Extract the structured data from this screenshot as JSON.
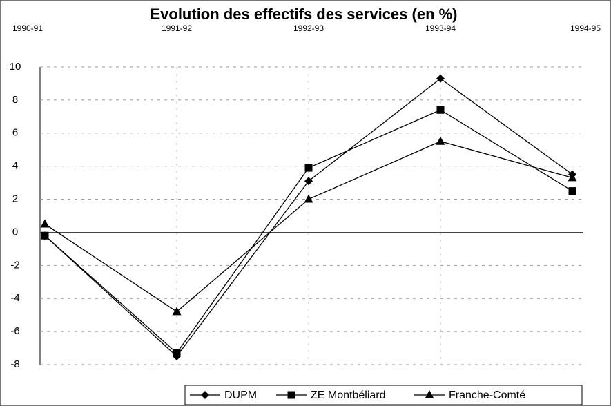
{
  "chart_data": {
    "type": "line",
    "title": "Evolution des effectifs des services (en %)",
    "categories": [
      "1990-91",
      "1991-92",
      "1992-93",
      "1993-94",
      "1994-95"
    ],
    "series": [
      {
        "name": "DUPM",
        "color": "#000000",
        "marker": "diamond",
        "values": [
          -0.2,
          -7.5,
          3.1,
          9.3,
          3.5
        ]
      },
      {
        "name": "ZE Montbéliard",
        "color": "#000000",
        "marker": "square",
        "values": [
          -0.2,
          -7.3,
          3.9,
          7.4,
          2.5
        ]
      },
      {
        "name": "Franche-Comté",
        "color": "#000000",
        "marker": "triangle",
        "values": [
          0.5,
          -4.8,
          2.0,
          5.5,
          3.3
        ]
      }
    ],
    "ylim": [
      -8,
      10
    ],
    "yticks": [
      -8,
      -6,
      -4,
      -2,
      0,
      2,
      4,
      6,
      8,
      10
    ],
    "grid": true,
    "legend": "bottom"
  }
}
